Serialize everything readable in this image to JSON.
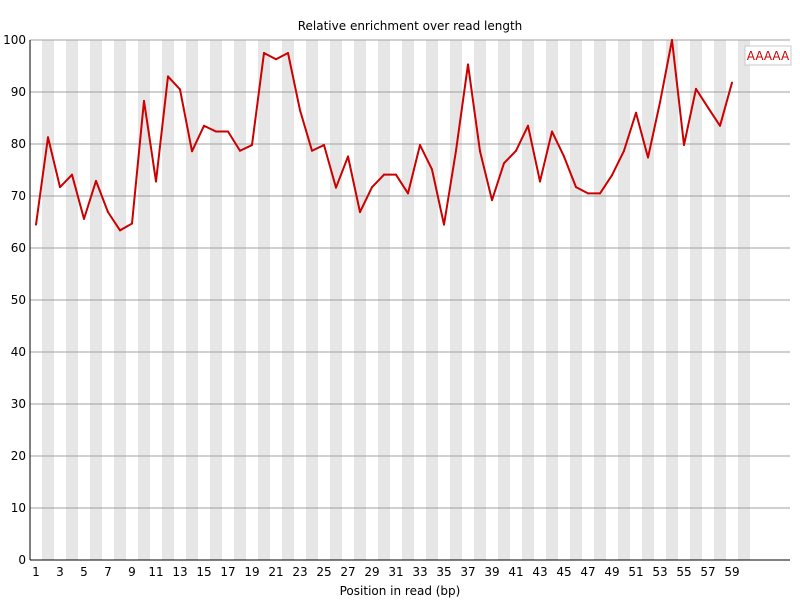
{
  "chart_data": {
    "type": "line",
    "title": "Relative enrichment over read length",
    "xlabel": "Position in read (bp)",
    "ylabel": "",
    "ylim": [
      0,
      100
    ],
    "yticks": [
      0,
      10,
      20,
      30,
      40,
      50,
      60,
      70,
      80,
      90,
      100
    ],
    "x": [
      1,
      2,
      3,
      4,
      5,
      6,
      7,
      8,
      9,
      10,
      11,
      12,
      13,
      14,
      15,
      16,
      17,
      18,
      19,
      20,
      21,
      22,
      23,
      24,
      25,
      26,
      27,
      28,
      29,
      30,
      31,
      32,
      33,
      34,
      35,
      36,
      37,
      38,
      39,
      40,
      41,
      42,
      43,
      44,
      45,
      46,
      47,
      48,
      49,
      50,
      51,
      52,
      53,
      54,
      55,
      56,
      57,
      58,
      59
    ],
    "xticks": [
      1,
      3,
      5,
      7,
      9,
      11,
      13,
      15,
      17,
      19,
      21,
      23,
      25,
      27,
      29,
      31,
      33,
      35,
      37,
      39,
      41,
      43,
      45,
      47,
      49,
      51,
      53,
      55,
      57,
      59
    ],
    "grid": true,
    "legend_position": "top-right",
    "series": [
      {
        "name": "AAAAA",
        "color": "#cc0000",
        "values": [
          64.5,
          81.3,
          71.7,
          74.1,
          65.6,
          72.9,
          66.9,
          63.4,
          64.7,
          88.3,
          72.8,
          93.0,
          90.5,
          78.6,
          83.5,
          82.4,
          82.4,
          78.7,
          79.8,
          97.5,
          96.3,
          97.5,
          86.5,
          78.7,
          79.8,
          71.6,
          77.6,
          66.9,
          71.7,
          74.1,
          74.1,
          70.5,
          79.8,
          75.1,
          64.5,
          78.7,
          95.3,
          78.6,
          69.2,
          76.3,
          78.7,
          83.5,
          72.8,
          82.4,
          77.6,
          71.7,
          70.5,
          70.5,
          74.0,
          78.7,
          86.0,
          77.4,
          88.0,
          100.0,
          79.8,
          90.6,
          87.0,
          83.5,
          91.8
        ]
      }
    ]
  }
}
